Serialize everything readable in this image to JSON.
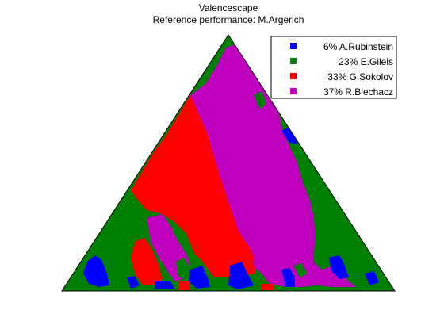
{
  "chart_data": {
    "type": "ternary-map",
    "title": "Valencescape",
    "subtitle": "Reference performance: M.Argerich",
    "series": [
      {
        "name": "A.Rubinstein",
        "share_pct": 6,
        "label": "6% A.Rubinstein",
        "color": "#0000ff"
      },
      {
        "name": "E.Gilels",
        "share_pct": 23,
        "label": "23% E.Gilels",
        "color": "#008000"
      },
      {
        "name": "G.Sokolov",
        "share_pct": 33,
        "label": "33% G.Sokolov",
        "color": "#ff0000"
      },
      {
        "name": "R.Blechacz",
        "share_pct": 37,
        "label": "37% R.Blechacz",
        "color": "#bf00bf"
      }
    ],
    "legend_position": "top-right",
    "grid": false
  }
}
